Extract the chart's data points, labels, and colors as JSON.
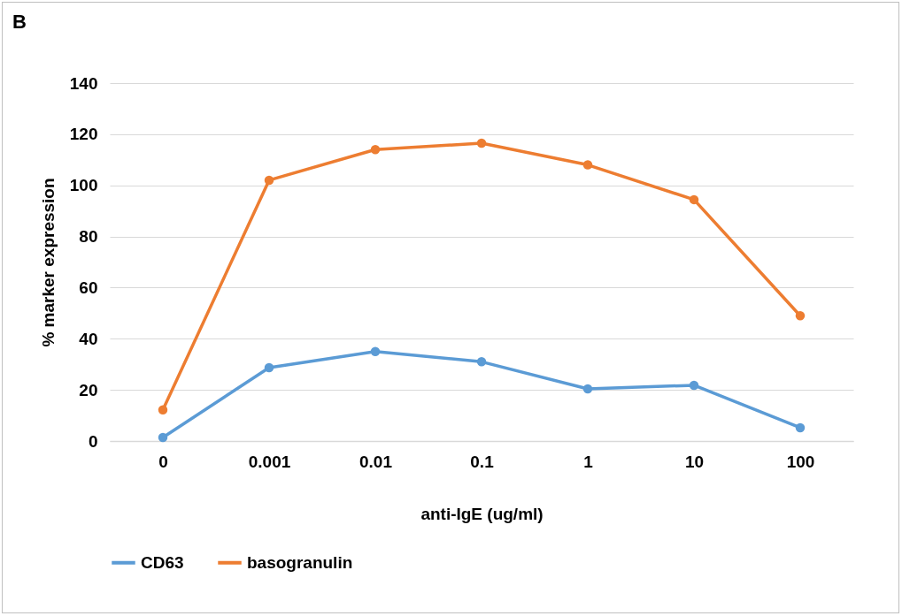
{
  "chart_data": {
    "type": "line",
    "annotations": [
      "B"
    ],
    "xlabel": "anti-IgE (ug/ml)",
    "ylabel": "% marker expression",
    "categories": [
      "0",
      "0.001",
      "0.01",
      "0.1",
      "1",
      "10",
      "100"
    ],
    "series": [
      {
        "name": "CD63",
        "color": "#5b9bd5",
        "values": [
          1.4,
          28.7,
          35,
          31,
          20.4,
          21.8,
          5.2
        ]
      },
      {
        "name": "basogranulin",
        "color": "#ed7d31",
        "values": [
          12.2,
          102,
          114,
          116.5,
          108,
          94.4,
          49
        ]
      }
    ],
    "ylim": [
      0,
      140
    ],
    "yticks": [
      0,
      20,
      40,
      60,
      80,
      100,
      120,
      140
    ],
    "grid": "y",
    "legend": "bottom",
    "marker": "circle"
  }
}
